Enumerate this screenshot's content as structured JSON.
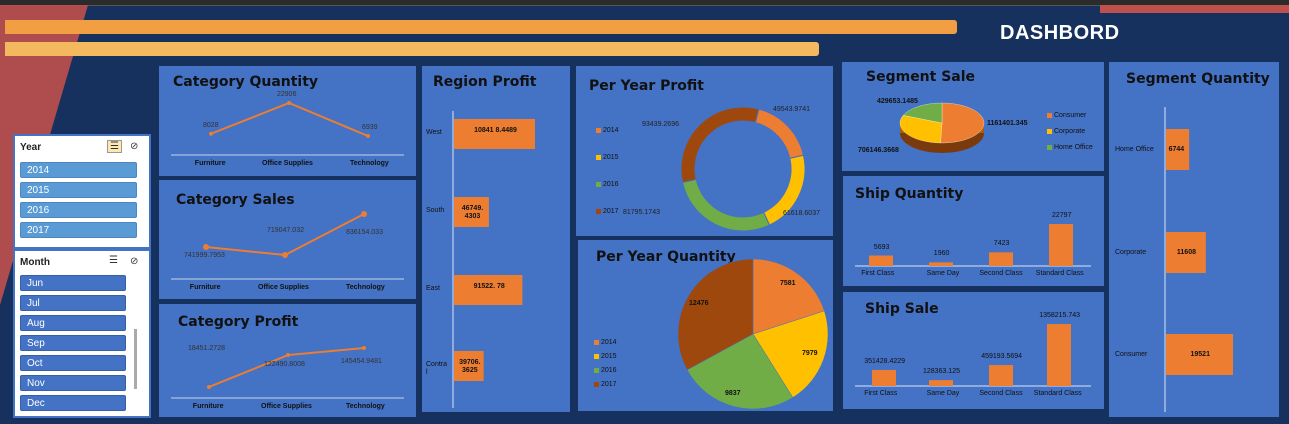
{
  "dashboard": {
    "title": "DASHBORD"
  },
  "colors": {
    "orange": "#ed7d31",
    "yellow": "#ffc000",
    "green": "#70ad47",
    "brown": "#9e480e",
    "panel": "#4472c4"
  },
  "slicers": {
    "year": {
      "title": "Year",
      "items": [
        "2014",
        "2015",
        "2016",
        "2017"
      ]
    },
    "month": {
      "title": "Month",
      "items": [
        "Jun",
        "Jul",
        "Aug",
        "Sep",
        "Oct",
        "Nov",
        "Dec"
      ]
    }
  },
  "chart_data": [
    {
      "id": "category_quantity",
      "type": "line",
      "title": "Category Quantity",
      "categories": [
        "Furniture",
        "Office Supplies",
        "Technology"
      ],
      "values": [
        8028,
        22906,
        6939
      ],
      "labels": [
        "8028",
        "22906",
        "6939"
      ]
    },
    {
      "id": "category_sales",
      "type": "line",
      "title": "Category Sales",
      "categories": [
        "Furniture",
        "Office Supplies",
        "Technology"
      ],
      "values": [
        741999.7953,
        719047.032,
        836154.033
      ],
      "labels": [
        "741999.7953",
        "719047.032",
        "836154.033"
      ]
    },
    {
      "id": "category_profit",
      "type": "line",
      "title": "Category Profit",
      "categories": [
        "Furniture",
        "Office Supplies",
        "Technology"
      ],
      "values": [
        18451.2728,
        122490.8008,
        145454.9481
      ],
      "labels": [
        "18451.2728",
        "122490.8008",
        "145454.9481"
      ]
    },
    {
      "id": "region_profit",
      "type": "bar",
      "title": "Region Profit",
      "orientation": "horizontal",
      "categories": [
        "West",
        "South",
        "East",
        "Central"
      ],
      "category_labels": [
        "West",
        "South",
        "East",
        "Contra l"
      ],
      "values": [
        108418.4489,
        46749.4303,
        91522.78,
        39706.3625
      ],
      "labels": [
        "10841 8.4489",
        "46749. 4303",
        "91522. 78",
        "39706. 3625"
      ]
    },
    {
      "id": "per_year_profit",
      "type": "pie",
      "variant": "doughnut",
      "title": "Per Year Profit",
      "categories": [
        "2014",
        "2015",
        "2016",
        "2017"
      ],
      "values": [
        49543.9741,
        61618.6037,
        81795.1743,
        93439.2696
      ],
      "labels": [
        "49543.9741",
        "61618.6037",
        "81795.1743",
        "93439.2696"
      ]
    },
    {
      "id": "per_year_quantity",
      "type": "pie",
      "title": "Per Year Quantity",
      "categories": [
        "2014",
        "2015",
        "2016",
        "2017"
      ],
      "values": [
        7581,
        7979,
        9837,
        12476
      ],
      "labels": [
        "7581",
        "7979",
        "9837",
        "12476"
      ]
    },
    {
      "id": "segment_sale",
      "type": "pie",
      "variant": "3d",
      "title": "Segment Sale",
      "categories": [
        "Consumer",
        "Corporate",
        "Home Office"
      ],
      "values": [
        1161401.345,
        706146.3668,
        429653.1485
      ],
      "labels": [
        "1161401.345",
        "706146.3668",
        "429653.1485"
      ]
    },
    {
      "id": "ship_quantity",
      "type": "bar",
      "title": "Ship Quantity",
      "categories": [
        "First Class",
        "Same Day",
        "Second Class",
        "Standard Class"
      ],
      "values": [
        5693,
        1960,
        7423,
        22797
      ],
      "labels": [
        "5693",
        "1960",
        "7423",
        "22797"
      ]
    },
    {
      "id": "ship_sale",
      "type": "bar",
      "title": "Ship Sale",
      "categories": [
        "First Class",
        "Same Day",
        "Second Class",
        "Standard Class"
      ],
      "values": [
        351428.4229,
        128363.125,
        459193.5694,
        1358215.743
      ],
      "labels": [
        "351428.4229",
        "128363.125",
        "459193.5694",
        "1358215.743"
      ]
    },
    {
      "id": "segment_quantity",
      "type": "bar",
      "title": "Segment Quantity",
      "orientation": "horizontal",
      "categories": [
        "Home Office",
        "Corporate",
        "Consumer"
      ],
      "values": [
        6744,
        11608,
        19521
      ],
      "labels": [
        "6744",
        "11608",
        "19521"
      ]
    }
  ]
}
